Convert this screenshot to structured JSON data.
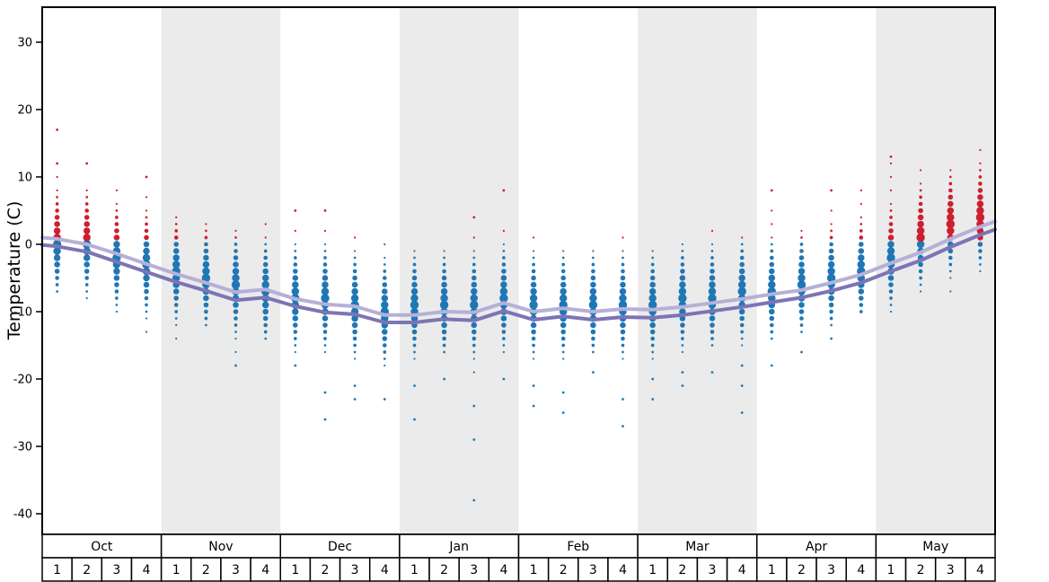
{
  "colors": {
    "warm_dot": "#cc1f30",
    "cold_dot": "#1f77b4",
    "line_upper": "#b6b0d8",
    "line_lower": "#7d74b6",
    "band": "#ebebeb",
    "axis": "#000000",
    "cell_bg": "#ffffff"
  },
  "chart_data": {
    "type": "scatter",
    "title": "",
    "xlabel": "",
    "ylabel": "Temperature (C)",
    "ylim": [
      -43,
      35
    ],
    "yticks": [
      30,
      20,
      10,
      0,
      -10,
      -20,
      -30,
      -40
    ],
    "grid": false,
    "legend": "none",
    "months": [
      "Oct",
      "Nov",
      "Dec",
      "Jan",
      "Feb",
      "Mar",
      "Apr",
      "May"
    ],
    "shaded_months": [
      "Nov",
      "Jan",
      "Mar",
      "May"
    ],
    "weeks_per_month": [
      "1",
      "2",
      "3",
      "4"
    ],
    "series": [
      {
        "name": "average-high-line",
        "color_key": "line_upper",
        "edge_left": 1.0,
        "edge_right": 3.4,
        "values": [
          0.8,
          0.0,
          -1.4,
          -2.9,
          -4.4,
          -5.7,
          -7.1,
          -6.7,
          -8.1,
          -8.9,
          -9.2,
          -10.5,
          -10.5,
          -10.0,
          -10.1,
          -8.7,
          -10.0,
          -9.5,
          -10.0,
          -9.6,
          -9.7,
          -9.3,
          -8.7,
          -8.1,
          -7.4,
          -6.8,
          -5.7,
          -4.5,
          -2.8,
          -1.2,
          0.8,
          2.6
        ]
      },
      {
        "name": "average-low-line",
        "color_key": "line_lower",
        "edge_left": -0.1,
        "edge_right": 2.2,
        "values": [
          -0.3,
          -1.1,
          -2.6,
          -4.1,
          -5.6,
          -6.9,
          -8.3,
          -7.9,
          -9.2,
          -10.1,
          -10.4,
          -11.6,
          -11.6,
          -11.1,
          -11.3,
          -9.9,
          -11.2,
          -10.7,
          -11.2,
          -10.8,
          -10.9,
          -10.5,
          -9.9,
          -9.3,
          -8.6,
          -7.9,
          -6.9,
          -5.7,
          -4.0,
          -2.4,
          -0.4,
          1.4
        ]
      }
    ],
    "weeks": [
      {
        "month": "Oct",
        "week": "1",
        "mode": 0,
        "max": 10,
        "min": -7,
        "outliers": [
          17,
          12
        ]
      },
      {
        "month": "Oct",
        "week": "2",
        "mode": 0,
        "max": 9,
        "min": -8,
        "outliers": [
          12
        ]
      },
      {
        "month": "Oct",
        "week": "3",
        "mode": -2,
        "max": 9,
        "min": -11,
        "outliers": []
      },
      {
        "month": "Oct",
        "week": "4",
        "mode": -3,
        "max": 8,
        "min": -13,
        "outliers": [
          10
        ]
      },
      {
        "month": "Nov",
        "week": "1",
        "mode": -4,
        "max": 5,
        "min": -14,
        "outliers": []
      },
      {
        "month": "Nov",
        "week": "2",
        "mode": -5,
        "max": 4,
        "min": -12,
        "outliers": []
      },
      {
        "month": "Nov",
        "week": "3",
        "mode": -6,
        "max": 2,
        "min": -16,
        "outliers": [
          -18
        ]
      },
      {
        "month": "Nov",
        "week": "4",
        "mode": -7,
        "max": 3,
        "min": -14,
        "outliers": []
      },
      {
        "month": "Dec",
        "week": "1",
        "mode": -8,
        "max": 2,
        "min": -16,
        "outliers": [
          5,
          -18
        ]
      },
      {
        "month": "Dec",
        "week": "2",
        "mode": -8,
        "max": 2,
        "min": -17,
        "outliers": [
          5,
          -22,
          -26
        ]
      },
      {
        "month": "Dec",
        "week": "3",
        "mode": -9,
        "max": 1,
        "min": -18,
        "outliers": [
          -21,
          -23
        ]
      },
      {
        "month": "Dec",
        "week": "4",
        "mode": -10,
        "max": 1,
        "min": -19,
        "outliers": [
          -23
        ]
      },
      {
        "month": "Jan",
        "week": "1",
        "mode": -9,
        "max": 0,
        "min": -18,
        "outliers": [
          -21,
          -26
        ]
      },
      {
        "month": "Jan",
        "week": "2",
        "mode": -9,
        "max": 0,
        "min": -16,
        "outliers": [
          -20
        ]
      },
      {
        "month": "Jan",
        "week": "3",
        "mode": -9,
        "max": 1,
        "min": -19,
        "outliers": [
          4,
          -24,
          -29,
          -38
        ]
      },
      {
        "month": "Jan",
        "week": "4",
        "mode": -8,
        "max": 2,
        "min": -17,
        "outliers": [
          8,
          -20
        ]
      },
      {
        "month": "Feb",
        "week": "1",
        "mode": -9,
        "max": 1,
        "min": -17,
        "outliers": [
          -21,
          -24
        ]
      },
      {
        "month": "Feb",
        "week": "2",
        "mode": -9,
        "max": 0,
        "min": -18,
        "outliers": [
          -22,
          -25
        ]
      },
      {
        "month": "Feb",
        "week": "3",
        "mode": -9,
        "max": 0,
        "min": -16,
        "outliers": [
          -19
        ]
      },
      {
        "month": "Feb",
        "week": "4",
        "mode": -9,
        "max": 1,
        "min": -18,
        "outliers": [
          -23,
          -27
        ]
      },
      {
        "month": "Mar",
        "week": "1",
        "mode": -9,
        "max": 0,
        "min": -17,
        "outliers": [
          -20,
          -23
        ]
      },
      {
        "month": "Mar",
        "week": "2",
        "mode": -8,
        "max": 1,
        "min": -16,
        "outliers": [
          -19,
          -21
        ]
      },
      {
        "month": "Mar",
        "week": "3",
        "mode": -8,
        "max": 3,
        "min": -15,
        "outliers": [
          -19
        ]
      },
      {
        "month": "Mar",
        "week": "4",
        "mode": -7,
        "max": 2,
        "min": -15,
        "outliers": [
          -18,
          -21,
          -25
        ]
      },
      {
        "month": "Apr",
        "week": "1",
        "mode": -7,
        "max": 5,
        "min": -14,
        "outliers": [
          8,
          -18
        ]
      },
      {
        "month": "Apr",
        "week": "2",
        "mode": -6,
        "max": 3,
        "min": -13,
        "outliers": [
          -16
        ]
      },
      {
        "month": "Apr",
        "week": "3",
        "mode": -5,
        "max": 6,
        "min": -12,
        "outliers": [
          8,
          -14
        ]
      },
      {
        "month": "Apr",
        "week": "4",
        "mode": -4,
        "max": 9,
        "min": -10,
        "outliers": []
      },
      {
        "month": "May",
        "week": "1",
        "mode": -2,
        "max": 12,
        "min": -10,
        "outliers": [
          13
        ]
      },
      {
        "month": "May",
        "week": "2",
        "mode": 1,
        "max": 11,
        "min": -8,
        "outliers": []
      },
      {
        "month": "May",
        "week": "3",
        "mode": 3,
        "max": 12,
        "min": -7,
        "outliers": []
      },
      {
        "month": "May",
        "week": "4",
        "mode": 4,
        "max": 14,
        "min": -5,
        "outliers": []
      }
    ]
  }
}
